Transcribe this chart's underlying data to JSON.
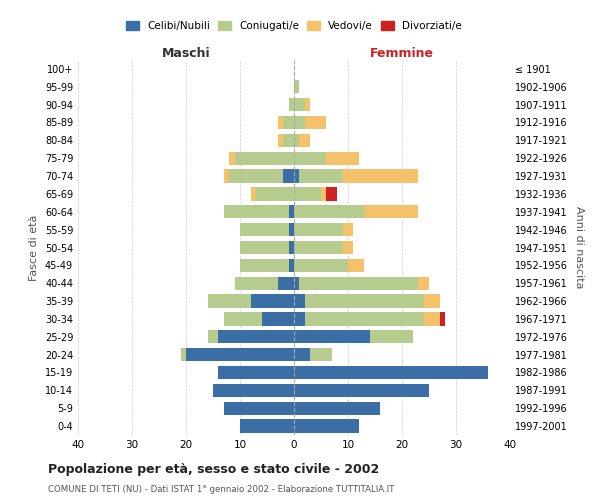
{
  "age_groups": [
    "0-4",
    "5-9",
    "10-14",
    "15-19",
    "20-24",
    "25-29",
    "30-34",
    "35-39",
    "40-44",
    "45-49",
    "50-54",
    "55-59",
    "60-64",
    "65-69",
    "70-74",
    "75-79",
    "80-84",
    "85-89",
    "90-94",
    "95-99",
    "100+"
  ],
  "birth_years": [
    "1997-2001",
    "1992-1996",
    "1987-1991",
    "1982-1986",
    "1977-1981",
    "1972-1976",
    "1967-1971",
    "1962-1966",
    "1957-1961",
    "1952-1956",
    "1947-1951",
    "1942-1946",
    "1937-1941",
    "1932-1936",
    "1927-1931",
    "1922-1926",
    "1917-1921",
    "1912-1916",
    "1907-1911",
    "1902-1906",
    "≤ 1901"
  ],
  "males": {
    "celibi": [
      10,
      13,
      15,
      14,
      20,
      14,
      6,
      8,
      3,
      1,
      1,
      1,
      1,
      0,
      2,
      0,
      0,
      0,
      0,
      0,
      0
    ],
    "coniugati": [
      0,
      0,
      0,
      0,
      1,
      2,
      7,
      8,
      8,
      9,
      9,
      9,
      12,
      7,
      10,
      11,
      2,
      2,
      1,
      0,
      0
    ],
    "vedovi": [
      0,
      0,
      0,
      0,
      0,
      0,
      0,
      0,
      0,
      0,
      0,
      0,
      0,
      1,
      1,
      1,
      1,
      1,
      0,
      0,
      0
    ],
    "divorziati": [
      0,
      0,
      0,
      0,
      0,
      0,
      0,
      0,
      0,
      0,
      0,
      0,
      0,
      0,
      0,
      0,
      0,
      0,
      0,
      0,
      0
    ]
  },
  "females": {
    "nubili": [
      12,
      16,
      25,
      36,
      3,
      14,
      2,
      2,
      1,
      0,
      0,
      0,
      0,
      0,
      1,
      0,
      0,
      0,
      0,
      0,
      0
    ],
    "coniugate": [
      0,
      0,
      0,
      0,
      4,
      8,
      22,
      22,
      22,
      10,
      9,
      9,
      13,
      5,
      8,
      6,
      1,
      2,
      2,
      1,
      0
    ],
    "vedove": [
      0,
      0,
      0,
      0,
      0,
      0,
      3,
      3,
      2,
      3,
      2,
      2,
      10,
      1,
      14,
      6,
      2,
      4,
      1,
      0,
      0
    ],
    "divorziate": [
      0,
      0,
      0,
      0,
      0,
      0,
      1,
      0,
      0,
      0,
      0,
      0,
      0,
      2,
      0,
      0,
      0,
      0,
      0,
      0,
      0
    ]
  },
  "color_celibi": "#3a6ea5",
  "color_coniugati": "#b5cc8e",
  "color_vedovi": "#f5c26b",
  "color_divorziati": "#cc2222",
  "title": "Popolazione per età, sesso e stato civile - 2002",
  "subtitle": "COMUNE DI TETI (NU) - Dati ISTAT 1° gennaio 2002 - Elaborazione TUTTITALIA.IT",
  "xlabel_left": "Maschi",
  "xlabel_right": "Femmine",
  "ylabel_left": "Fasce di età",
  "ylabel_right": "Anni di nascita",
  "xlim": 40,
  "bg_color": "#ffffff",
  "grid_color": "#cccccc"
}
